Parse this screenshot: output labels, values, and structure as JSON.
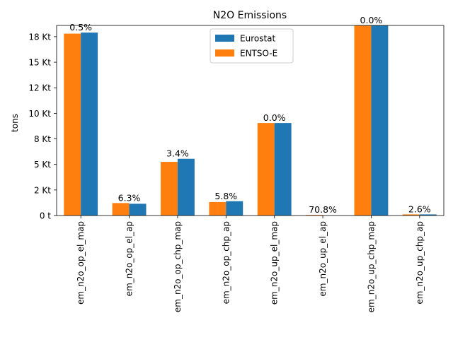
{
  "chart_data": {
    "type": "bar",
    "title": "N2O Emissions",
    "xlabel": "",
    "ylabel": "tons",
    "categories": [
      "em_n2o_op_el_map",
      "em_n2o_op_el_ap",
      "em_n2o_op_chp_map",
      "em_n2o_op_chp_ap",
      "em_n2o_up_el_map",
      "em_n2o_up_el_ap",
      "em_n2o_up_chp_map",
      "em_n2o_up_chp_ap"
    ],
    "series": [
      {
        "name": "ENTSO-E",
        "color": "#ff7f0e",
        "values": [
          17800,
          1220,
          5250,
          1320,
          9050,
          60,
          18600,
          110
        ]
      },
      {
        "name": "Eurostat",
        "color": "#1f77b4",
        "values": [
          17900,
          1150,
          5550,
          1400,
          9050,
          10,
          18600,
          110
        ]
      }
    ],
    "bar_labels": [
      "0.5%",
      "6.3%",
      "3.4%",
      "5.8%",
      "0.0%",
      "70.8%",
      "0.0%",
      "2.6%"
    ],
    "yticks": [
      {
        "value": 0,
        "label": "0 t"
      },
      {
        "value": 2500,
        "label": "2 Kt"
      },
      {
        "value": 5000,
        "label": "5 Kt"
      },
      {
        "value": 7500,
        "label": "8 Kt"
      },
      {
        "value": 10000,
        "label": "10 Kt"
      },
      {
        "value": 12500,
        "label": "12 Kt"
      },
      {
        "value": 15000,
        "label": "15 Kt"
      },
      {
        "value": 17500,
        "label": "18 Kt"
      }
    ],
    "ylim": [
      0,
      18600
    ],
    "grid": false,
    "legend": {
      "position": "top-center",
      "entries": [
        {
          "label": "Eurostat",
          "color": "#1f77b4"
        },
        {
          "label": "ENTSO-E",
          "color": "#ff7f0e"
        }
      ]
    }
  }
}
